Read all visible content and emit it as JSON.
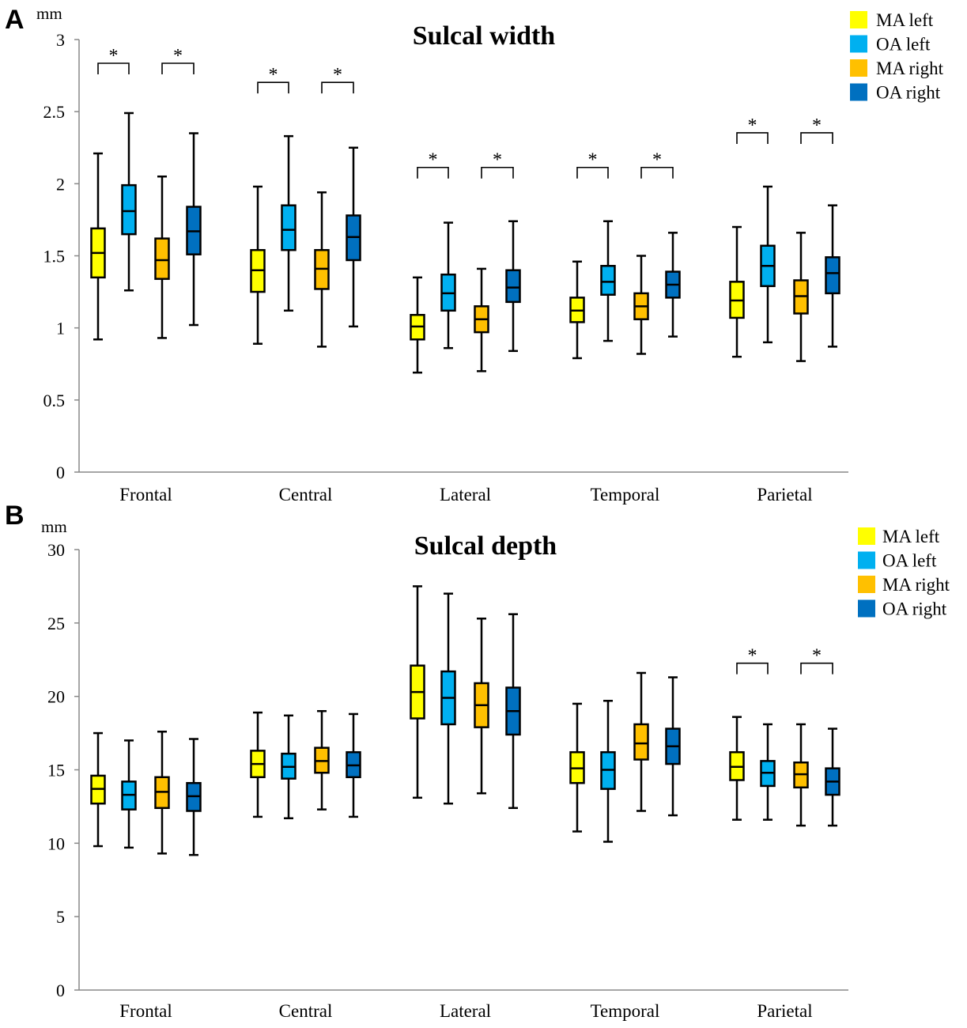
{
  "legend": [
    {
      "label": "MA left",
      "color": "#FFFF00"
    },
    {
      "label": "OA left",
      "color": "#00B0F0"
    },
    {
      "label": "MA right",
      "color": "#FFC000"
    },
    {
      "label": "OA right",
      "color": "#0070C0"
    }
  ],
  "chart_data": [
    {
      "type": "box",
      "panel": "A",
      "title": "Sulcal width",
      "ylabel": "mm",
      "ylim": [
        0,
        3
      ],
      "yticks": [
        "0",
        "0.5",
        "1",
        "1.5",
        "2",
        "2.5",
        "3"
      ],
      "categories": [
        "Frontal",
        "Central",
        "Lateral",
        "Temporal",
        "Parietal"
      ],
      "series_names": [
        "MA left",
        "OA left",
        "MA right",
        "OA right"
      ],
      "significance_marker": "*",
      "significance": [
        {
          "category": 0,
          "pairs": [
            [
              0,
              1
            ],
            [
              2,
              3
            ]
          ]
        },
        {
          "category": 1,
          "pairs": [
            [
              0,
              1
            ],
            [
              2,
              3
            ]
          ]
        },
        {
          "category": 2,
          "pairs": [
            [
              0,
              1
            ],
            [
              2,
              3
            ]
          ]
        },
        {
          "category": 3,
          "pairs": [
            [
              0,
              1
            ],
            [
              2,
              3
            ]
          ]
        },
        {
          "category": 4,
          "pairs": [
            [
              0,
              1
            ],
            [
              2,
              3
            ]
          ]
        }
      ],
      "boxes": [
        [
          [
            0.92,
            1.35,
            1.52,
            1.69,
            2.21
          ],
          [
            1.26,
            1.65,
            1.81,
            1.99,
            2.49
          ],
          [
            0.93,
            1.34,
            1.47,
            1.62,
            2.05
          ],
          [
            1.02,
            1.51,
            1.67,
            1.84,
            2.35
          ]
        ],
        [
          [
            0.89,
            1.25,
            1.4,
            1.54,
            1.98
          ],
          [
            1.12,
            1.54,
            1.68,
            1.85,
            2.33
          ],
          [
            0.87,
            1.27,
            1.41,
            1.54,
            1.94
          ],
          [
            1.01,
            1.47,
            1.63,
            1.78,
            2.25
          ]
        ],
        [
          [
            0.69,
            0.92,
            1.01,
            1.09,
            1.35
          ],
          [
            0.86,
            1.12,
            1.24,
            1.37,
            1.73
          ],
          [
            0.7,
            0.97,
            1.06,
            1.15,
            1.41
          ],
          [
            0.84,
            1.18,
            1.28,
            1.4,
            1.74
          ]
        ],
        [
          [
            0.79,
            1.04,
            1.12,
            1.21,
            1.46
          ],
          [
            0.91,
            1.23,
            1.32,
            1.43,
            1.74
          ],
          [
            0.82,
            1.06,
            1.15,
            1.24,
            1.5
          ],
          [
            0.94,
            1.21,
            1.3,
            1.39,
            1.66
          ]
        ],
        [
          [
            0.8,
            1.07,
            1.19,
            1.32,
            1.7
          ],
          [
            0.9,
            1.29,
            1.43,
            1.57,
            1.98
          ],
          [
            0.77,
            1.1,
            1.22,
            1.33,
            1.66
          ],
          [
            0.87,
            1.24,
            1.38,
            1.49,
            1.85
          ]
        ]
      ]
    },
    {
      "type": "box",
      "panel": "B",
      "title": "Sulcal depth",
      "ylabel": "mm",
      "ylim": [
        0,
        30
      ],
      "yticks": [
        "0",
        "5",
        "10",
        "15",
        "20",
        "25",
        "30"
      ],
      "categories": [
        "Frontal",
        "Central",
        "Lateral",
        "Temporal",
        "Parietal"
      ],
      "series_names": [
        "MA left",
        "OA left",
        "MA right",
        "OA right"
      ],
      "significance_marker": "*",
      "significance": [
        {
          "category": 4,
          "pairs": [
            [
              0,
              1
            ],
            [
              2,
              3
            ]
          ]
        }
      ],
      "boxes": [
        [
          [
            9.8,
            12.7,
            13.7,
            14.6,
            17.5
          ],
          [
            9.7,
            12.3,
            13.3,
            14.2,
            17.0
          ],
          [
            9.3,
            12.4,
            13.5,
            14.5,
            17.6
          ],
          [
            9.2,
            12.2,
            13.2,
            14.1,
            17.1
          ]
        ],
        [
          [
            11.8,
            14.5,
            15.4,
            16.3,
            18.9
          ],
          [
            11.7,
            14.4,
            15.2,
            16.1,
            18.7
          ],
          [
            12.3,
            14.8,
            15.6,
            16.5,
            19.0
          ],
          [
            11.8,
            14.5,
            15.3,
            16.2,
            18.8
          ]
        ],
        [
          [
            13.1,
            18.5,
            20.3,
            22.1,
            27.5
          ],
          [
            12.7,
            18.1,
            19.9,
            21.7,
            27.0
          ],
          [
            13.4,
            17.9,
            19.4,
            20.9,
            25.3
          ],
          [
            12.4,
            17.4,
            19.0,
            20.6,
            25.6
          ]
        ],
        [
          [
            10.8,
            14.1,
            15.1,
            16.2,
            19.5
          ],
          [
            10.1,
            13.7,
            15.0,
            16.2,
            19.7
          ],
          [
            12.2,
            15.7,
            16.8,
            18.1,
            21.6
          ],
          [
            11.9,
            15.4,
            16.6,
            17.8,
            21.3
          ]
        ],
        [
          [
            11.6,
            14.3,
            15.2,
            16.2,
            18.6
          ],
          [
            11.6,
            13.9,
            14.8,
            15.6,
            18.1
          ],
          [
            11.2,
            13.8,
            14.7,
            15.5,
            18.1
          ],
          [
            11.2,
            13.3,
            14.2,
            15.1,
            17.8
          ]
        ]
      ]
    }
  ]
}
